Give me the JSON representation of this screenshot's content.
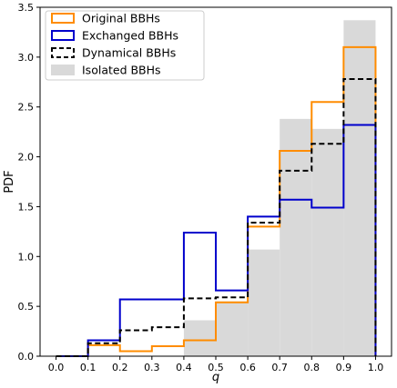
{
  "chart_data": {
    "type": "histogram",
    "title": "",
    "xlabel": "q",
    "ylabel": "PDF",
    "xlim": [
      -0.05,
      1.05
    ],
    "ylim": [
      0,
      3.5
    ],
    "xticks": [
      "0.0",
      "0.1",
      "0.2",
      "0.3",
      "0.4",
      "0.5",
      "0.6",
      "0.7",
      "0.8",
      "0.9",
      "1.0"
    ],
    "yticks": [
      "0.0",
      "0.5",
      "1.0",
      "1.5",
      "2.0",
      "2.5",
      "3.0",
      "3.5"
    ],
    "bin_edges": [
      0.0,
      0.1,
      0.2,
      0.3,
      0.4,
      0.5,
      0.6,
      0.7,
      0.8,
      0.9,
      1.0
    ],
    "legend_position": "top-left",
    "grid": false,
    "series": [
      {
        "name": "Original BBHs",
        "style": "step",
        "color": "#ff8c00",
        "values": [
          0.0,
          0.11,
          0.05,
          0.1,
          0.16,
          0.54,
          1.3,
          2.06,
          2.55,
          3.1
        ]
      },
      {
        "name": "Exchanged BBHs",
        "style": "step",
        "color": "#0000cc",
        "values": [
          0.0,
          0.16,
          0.57,
          0.57,
          1.24,
          0.66,
          1.4,
          1.57,
          1.49,
          2.32
        ]
      },
      {
        "name": "Dynamical BBHs",
        "style": "dashed-step",
        "color": "#000000",
        "values": [
          0.0,
          0.13,
          0.26,
          0.29,
          0.58,
          0.59,
          1.34,
          1.86,
          2.13,
          2.78
        ]
      },
      {
        "name": "Isolated BBHs",
        "style": "filled",
        "color": "#d9d9d9",
        "values": [
          0.0,
          0.0,
          0.0,
          0.0,
          0.36,
          0.55,
          1.07,
          2.38,
          2.28,
          3.37
        ]
      }
    ]
  }
}
